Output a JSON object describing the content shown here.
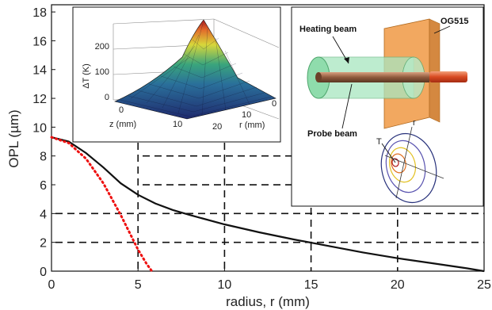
{
  "chart_data": [
    {
      "type": "line",
      "title": "",
      "xlabel": "radius, r (mm)",
      "ylabel": "OPL (µm)",
      "xlim": [
        0,
        25
      ],
      "ylim": [
        0,
        18.5
      ],
      "x_ticks": [
        "0",
        "5",
        "10",
        "15",
        "20",
        "25"
      ],
      "y_ticks": [
        "0",
        "2",
        "4",
        "6",
        "8",
        "10",
        "12",
        "14",
        "16",
        "18"
      ],
      "grid": "dashed, lower-right region",
      "series": [
        {
          "style": "solid",
          "color": "#111111",
          "x": [
            0,
            1,
            2,
            3,
            4,
            5,
            6,
            7,
            8,
            10,
            12,
            14,
            16,
            18,
            20,
            22,
            24,
            25
          ],
          "y": [
            9.3,
            9.0,
            8.2,
            7.2,
            6.1,
            5.3,
            4.7,
            4.25,
            3.9,
            3.25,
            2.7,
            2.2,
            1.75,
            1.3,
            0.9,
            0.55,
            0.2,
            0.0
          ]
        },
        {
          "style": "dotted",
          "color": "#ee1111",
          "x": [
            0,
            1,
            2,
            3,
            4,
            5,
            5.5,
            5.8
          ],
          "y": [
            9.3,
            8.9,
            7.8,
            6.1,
            3.9,
            1.5,
            0.5,
            0.0
          ]
        }
      ]
    },
    {
      "type": "surface",
      "title": "",
      "xlabel": "z (mm)",
      "ylabel": "r (mm)",
      "zlabel": "ΔT (K)",
      "x_ticks": [
        "0",
        "10"
      ],
      "y_ticks": [
        "0",
        "10",
        "20"
      ],
      "z_ticks": [
        "0",
        "100",
        "200"
      ]
    }
  ],
  "diagram": {
    "labels": {
      "heating": "Heating beam",
      "og": "OG515",
      "probe": "Probe beam",
      "t": "T",
      "r": "r"
    }
  }
}
